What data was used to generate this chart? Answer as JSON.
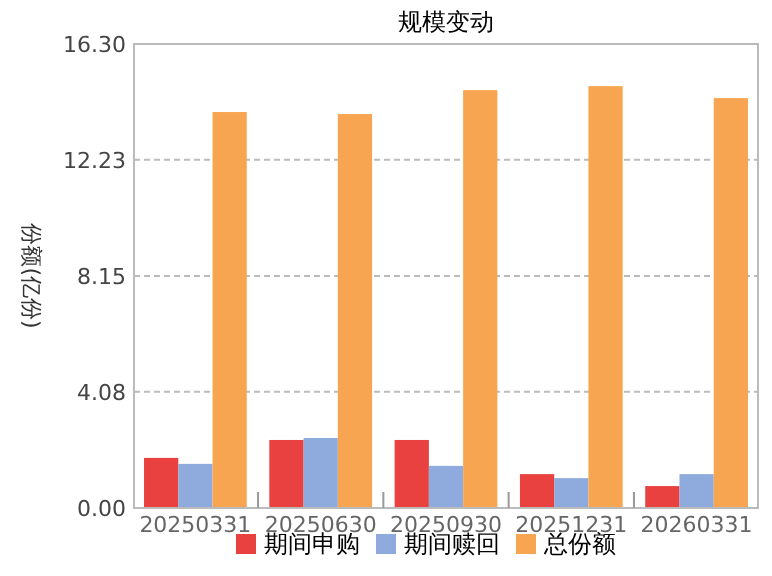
{
  "chart_data": {
    "type": "bar",
    "title": "规模变动",
    "ylabel": "份额(亿份)",
    "categories": [
      "20250331",
      "20250630",
      "20250930",
      "20251231",
      "20260331"
    ],
    "series": [
      {
        "name": "期间申购",
        "color": "#e8413f",
        "values": [
          1.76,
          2.39,
          2.39,
          1.19,
          0.77
        ]
      },
      {
        "name": "期间赎回",
        "color": "#8faadc",
        "values": [
          1.55,
          2.46,
          1.48,
          1.05,
          1.19
        ]
      },
      {
        "name": "总份额",
        "color": "#f8a552",
        "values": [
          13.91,
          13.84,
          14.68,
          14.82,
          14.4
        ]
      }
    ],
    "ylim": [
      0,
      16.3
    ],
    "yticks": [
      {
        "value": 0,
        "label": "0.00"
      },
      4.08,
      8.15,
      12.23,
      {
        "value": 16.3,
        "label": "16.30"
      }
    ],
    "grid": "y",
    "legend": "bottom"
  }
}
